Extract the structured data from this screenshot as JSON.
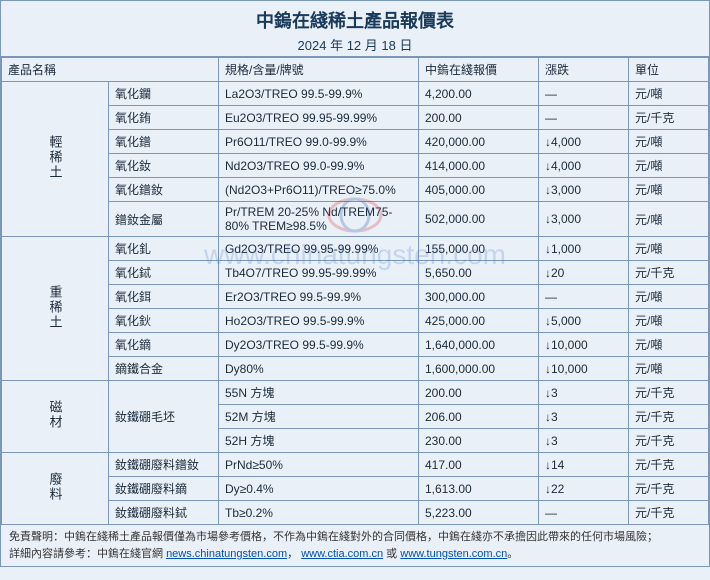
{
  "header": {
    "title": "中鎢在綫稀土產品報價表",
    "date": "2024 年 12 月 18 日"
  },
  "columns": {
    "name": "產品名稱",
    "spec": "規格/含量/牌號",
    "price": "中鎢在綫報價",
    "change": "漲跌",
    "unit": "單位"
  },
  "groups": [
    {
      "label": "輕稀土",
      "rows": [
        {
          "name": "氧化鑭",
          "spec": "La2O3/TREO 99.5-99.9%",
          "price": "4,200.00",
          "change": "—",
          "unit": "元/噸"
        },
        {
          "name": "氧化銪",
          "spec": "Eu2O3/TREO 99.95-99.99%",
          "price": "200.00",
          "change": "—",
          "unit": "元/千克"
        },
        {
          "name": "氧化鐠",
          "spec": "Pr6O11/TREO 99.0-99.9%",
          "price": "420,000.00",
          "change": "↓4,000",
          "unit": "元/噸"
        },
        {
          "name": "氧化釹",
          "spec": "Nd2O3/TREO 99.0-99.9%",
          "price": "414,000.00",
          "change": "↓4,000",
          "unit": "元/噸"
        },
        {
          "name": "氧化鐠釹",
          "spec": "(Nd2O3+Pr6O11)/TREO≥75.0%",
          "price": "405,000.00",
          "change": "↓3,000",
          "unit": "元/噸"
        },
        {
          "name": "鐠釹金屬",
          "spec": "Pr/TREM 20-25% Nd/TREM75-80% TREM≥98.5%",
          "price": "502,000.00",
          "change": "↓3,000",
          "unit": "元/噸"
        }
      ]
    },
    {
      "label": "重稀土",
      "rows": [
        {
          "name": "氧化釓",
          "spec": "Gd2O3/TREO 99.95-99.99%",
          "price": "155,000.00",
          "change": "↓1,000",
          "unit": "元/噸"
        },
        {
          "name": "氧化鋱",
          "spec": "Tb4O7/TREO 99.95-99.99%",
          "price": "5,650.00",
          "change": "↓20",
          "unit": "元/千克"
        },
        {
          "name": "氧化鉺",
          "spec": "Er2O3/TREO 99.5-99.9%",
          "price": "300,000.00",
          "change": "—",
          "unit": "元/噸"
        },
        {
          "name": "氧化鈥",
          "spec": "Ho2O3/TREO 99.5-99.9%",
          "price": "425,000.00",
          "change": "↓5,000",
          "unit": "元/噸"
        },
        {
          "name": "氧化鏑",
          "spec": "Dy2O3/TREO 99.5-99.9%",
          "price": "1,640,000.00",
          "change": "↓10,000",
          "unit": "元/噸"
        },
        {
          "name": "鏑鐵合金",
          "spec": "Dy80%",
          "price": "1,600,000.00",
          "change": "↓10,000",
          "unit": "元/噸"
        }
      ]
    },
    {
      "label": "磁材",
      "rows": [
        {
          "name": "釹鐵硼毛坯",
          "spec": "55N 方塊",
          "price": "200.00",
          "change": "↓3",
          "unit": "元/千克",
          "name_rowspan": 3
        },
        {
          "name": "",
          "spec": "52M 方塊",
          "price": "206.00",
          "change": "↓3",
          "unit": "元/千克"
        },
        {
          "name": "",
          "spec": "52H 方塊",
          "price": "230.00",
          "change": "↓3",
          "unit": "元/千克"
        }
      ]
    },
    {
      "label": "廢料",
      "rows": [
        {
          "name": "釹鐵硼廢料鐠釹",
          "spec": "PrNd≥50%",
          "price": "417.00",
          "change": "↓14",
          "unit": "元/千克"
        },
        {
          "name": "釹鐵硼廢料鏑",
          "spec": "Dy≥0.4%",
          "price": "1,613.00",
          "change": "↓22",
          "unit": "元/千克"
        },
        {
          "name": "釹鐵硼廢料鋱",
          "spec": "Tb≥0.2%",
          "price": "5,223.00",
          "change": "—",
          "unit": "元/千克"
        }
      ]
    }
  ],
  "footer": {
    "disclaimer_label": "免責聲明：",
    "disclaimer": "中鎢在綫稀土產品報價僅為市場參考價格，不作為中鎢在綫對外的合同價格，中鎢在綫亦不承擔因此帶來的任何市場風險；",
    "ref_label": "詳細內容請參考：",
    "ref_text": "中鎢在綫官網 ",
    "link1": "news.chinatungsten.com",
    "link_sep": "，",
    "link2": "www.ctia.com.cn",
    "link_or": " 或 ",
    "link3": "www.tungsten.com.cn",
    "period": "。"
  },
  "watermark": "www.chinatungsten.com",
  "colors": {
    "border": "#7a97b8",
    "background": "#eaf0f8",
    "text": "#1a2a3a",
    "title": "#1a3a5a"
  }
}
